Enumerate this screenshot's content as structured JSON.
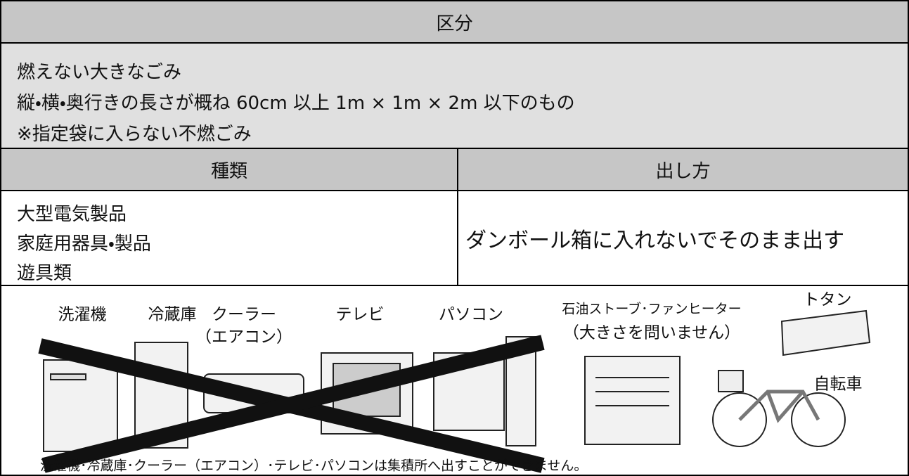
{
  "header": {
    "title": "区分"
  },
  "category": {
    "lines": [
      "燃えない大きなごみ",
      "縦・横・奥行きの長さが概ね 60cm 以上 1m × 1m × 2m 以下のもの",
      "※指定袋に入らない不燃ごみ"
    ]
  },
  "table": {
    "headers": [
      "種類",
      "出し方"
    ],
    "rows": [
      [
        [
          "大型電気製品",
          "家庭用器具・製品",
          "遊具類"
        ],
        "ダンボール箱に入れないでそのまま出す"
      ]
    ]
  },
  "illustration": {
    "labels": [
      "洗濯機",
      "冷蔵庫",
      "クーラー",
      "（エアコン）",
      "テレビ",
      "パソコン",
      "石油ストーブ･ファンヒーター",
      "（大きさを問いません）",
      "トタン",
      "自転車"
    ],
    "note": "洗濯機･冷蔵庫･クーラー（エアコン）･テレビ･パソコンは集積所へ出すことができません。"
  }
}
